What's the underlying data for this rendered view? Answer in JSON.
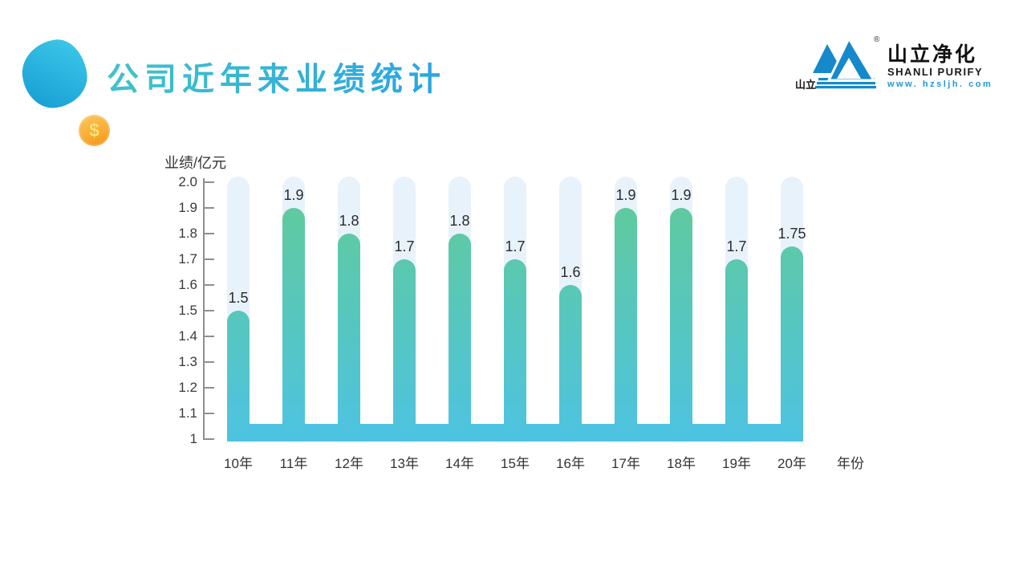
{
  "title": {
    "text": "公司近年来业绩统计"
  },
  "logo": {
    "brand_cn": "山立净化",
    "brand_en": "SHANLI PURIFY",
    "website": "www. hzsljh. com",
    "icon_caption": "山立",
    "registered_mark": "®",
    "brand_blue": "#1589cb"
  },
  "decor": {
    "coin_symbol": "$"
  },
  "palette": {
    "title_gradient_left": "#41c2ca",
    "title_gradient_right": "#2aa5e2",
    "blob_gradient": [
      "#3cc6e8",
      "#1aa2d6"
    ],
    "coin_orange": "#f59c1e"
  },
  "chart_data": {
    "type": "bar",
    "title": "",
    "ylabel": "业绩/亿元",
    "xlabel": "年份",
    "categories": [
      "10年",
      "11年",
      "12年",
      "13年",
      "14年",
      "15年",
      "16年",
      "17年",
      "18年",
      "19年",
      "20年"
    ],
    "values": [
      1.5,
      1.9,
      1.8,
      1.7,
      1.8,
      1.7,
      1.6,
      1.9,
      1.9,
      1.7,
      1.75
    ],
    "value_labels": [
      "1.5",
      "1.9",
      "1.8",
      "1.7",
      "1.8",
      "1.7",
      "1.6",
      "1.9",
      "1.9",
      "1.7",
      "1.75"
    ],
    "y_ticks": [
      "2.0",
      "1.9",
      "1.8",
      "1.7",
      "1.6",
      "1.5",
      "1.4",
      "1.3",
      "1.2",
      "1.1",
      "1"
    ],
    "ylim": [
      1,
      2
    ],
    "grid": false,
    "legend": null,
    "colors": {
      "bar_gradient_top": "#62cb96",
      "bar_gradient_bottom": "#4dc3e2",
      "track": "#e8f2fb",
      "baseline": "#4dc3e2",
      "axis": "#8f8f8f",
      "text": "#333333"
    }
  }
}
